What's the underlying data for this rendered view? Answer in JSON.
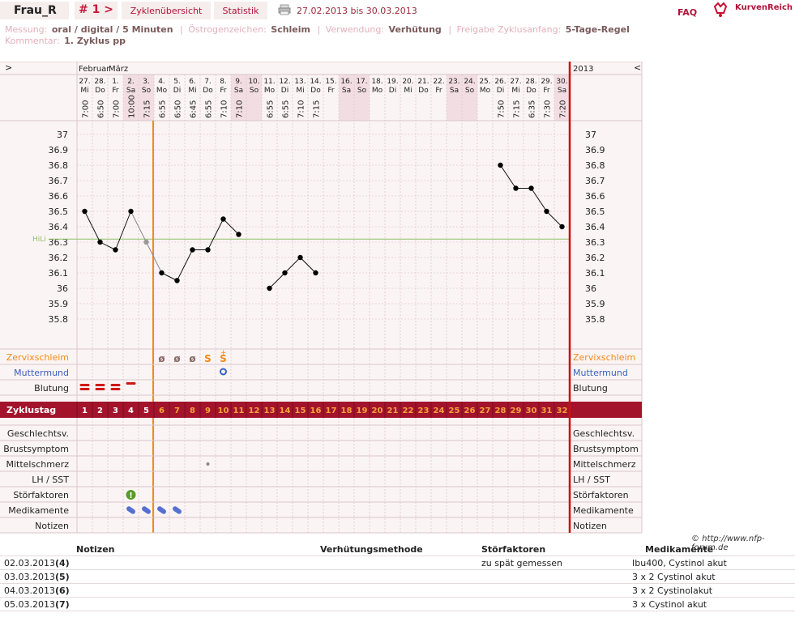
{
  "header": {
    "user": "Frau_R",
    "cycle_nav": "# 1 >",
    "tab_overview": "Zyklenübersicht",
    "tab_stats": "Statistik",
    "date_range": "27.02.2013 bis 30.03.2013",
    "faq": "FAQ",
    "logo": "KurvenReich",
    "print_icon": "printer-icon"
  },
  "info": {
    "measure_label": "Messung:",
    "measure_value": "oral / digital / 5 Minuten",
    "estrogen_label": "Östrogenzeichen:",
    "estrogen_value": "Schleim",
    "use_label": "Verwendung:",
    "use_value": "Verhütung",
    "release_label": "Freigabe Zyklusanfang:",
    "release_value": "5-Tage-Regel",
    "comment_label": "Kommentar:",
    "comment_value": "1. Zyklus pp"
  },
  "chart": {
    "nav_left": ">",
    "nav_right": "<",
    "year": "2013",
    "months": [
      "Februar",
      "März"
    ],
    "hili_label": "HiLi",
    "hili": 36.32,
    "ylim": [
      35.75,
      37.05
    ],
    "yticks": [
      "37",
      "36.9",
      "36.8",
      "36.7",
      "36.6",
      "36.5",
      "36.4",
      "36.3",
      "36.2",
      "36.1",
      "36",
      "35.9",
      "35.8"
    ],
    "cover_line_day": 5,
    "days": [
      {
        "d": "27.",
        "w": "Mi",
        "t": "7:00",
        "we": false
      },
      {
        "d": "28.",
        "w": "Do",
        "t": "6:50",
        "we": false
      },
      {
        "d": "1.",
        "w": "Fr",
        "t": "7:00",
        "we": false
      },
      {
        "d": "2.",
        "w": "Sa",
        "t": "10:00",
        "we": true
      },
      {
        "d": "3.",
        "w": "So",
        "t": "7:15",
        "we": true
      },
      {
        "d": "4.",
        "w": "Mo",
        "t": "6:55",
        "we": false
      },
      {
        "d": "5.",
        "w": "Di",
        "t": "6:50",
        "we": false
      },
      {
        "d": "6.",
        "w": "Mi",
        "t": "6:45",
        "we": false
      },
      {
        "d": "7.",
        "w": "Do",
        "t": "6:55",
        "we": false
      },
      {
        "d": "8.",
        "w": "Fr",
        "t": "7:10",
        "we": false
      },
      {
        "d": "9.",
        "w": "Sa",
        "t": "7:10",
        "we": true
      },
      {
        "d": "10.",
        "w": "So",
        "t": "",
        "we": true
      },
      {
        "d": "11.",
        "w": "Mo",
        "t": "6:55",
        "we": false
      },
      {
        "d": "12.",
        "w": "Di",
        "t": "6:55",
        "we": false
      },
      {
        "d": "13.",
        "w": "Mi",
        "t": "7:10",
        "we": false
      },
      {
        "d": "14.",
        "w": "Do",
        "t": "7:15",
        "we": false
      },
      {
        "d": "15.",
        "w": "Fr",
        "t": "",
        "we": false
      },
      {
        "d": "16.",
        "w": "Sa",
        "t": "",
        "we": true
      },
      {
        "d": "17.",
        "w": "So",
        "t": "",
        "we": true
      },
      {
        "d": "18.",
        "w": "Mo",
        "t": "",
        "we": false
      },
      {
        "d": "19.",
        "w": "Di",
        "t": "",
        "we": false
      },
      {
        "d": "20.",
        "w": "Mi",
        "t": "",
        "we": false
      },
      {
        "d": "21.",
        "w": "Do",
        "t": "",
        "we": false
      },
      {
        "d": "22.",
        "w": "Fr",
        "t": "",
        "we": false
      },
      {
        "d": "23.",
        "w": "Sa",
        "t": "",
        "we": true
      },
      {
        "d": "24.",
        "w": "So",
        "t": "",
        "we": true
      },
      {
        "d": "25.",
        "w": "Mo",
        "t": "",
        "we": false
      },
      {
        "d": "26.",
        "w": "Di",
        "t": "7:50",
        "we": false
      },
      {
        "d": "27.",
        "w": "Mi",
        "t": "7:15",
        "we": false
      },
      {
        "d": "28.",
        "w": "Do",
        "t": "6:35",
        "we": false
      },
      {
        "d": "29.",
        "w": "Fr",
        "t": "7:30",
        "we": false
      },
      {
        "d": "30.",
        "w": "Sa",
        "t": "7:20",
        "we": true
      }
    ],
    "temps": [
      36.5,
      36.3,
      36.25,
      36.5,
      36.3,
      36.1,
      36.05,
      36.25,
      36.25,
      36.45,
      36.35,
      null,
      36.0,
      36.1,
      36.2,
      36.1,
      null,
      null,
      null,
      null,
      null,
      null,
      null,
      null,
      null,
      null,
      null,
      36.8,
      36.65,
      36.65,
      36.5,
      36.4
    ],
    "excluded": [
      4
    ],
    "mucus_label": "Zervixschleim",
    "mucus": {
      "6": "ø",
      "7": "ø",
      "8": "ø",
      "9": "S",
      "10": "S"
    },
    "mucus_plus_day": 10,
    "cervix_label": "Muttermund",
    "cervix_day": 10,
    "bleeding_label": "Blutung",
    "bleeding": {
      "1": "heavy",
      "2": "heavy",
      "3": "heavy",
      "4": "light"
    },
    "cycle_label": "Zyklustag",
    "cycle_days": [
      "1",
      "2",
      "3",
      "4",
      "5",
      "6",
      "7",
      "8",
      "9",
      "10",
      "11",
      "12",
      "13",
      "14",
      "15",
      "16",
      "17",
      "18",
      "19",
      "20",
      "21",
      "22",
      "23",
      "24",
      "25",
      "26",
      "27",
      "28",
      "29",
      "30",
      "31",
      "32"
    ],
    "rows": [
      {
        "label": "Geschlechtsv.",
        "name": "intercourse"
      },
      {
        "label": "Brustsymptom",
        "name": "breast"
      },
      {
        "label": "Mittelschmerz",
        "name": "midpain"
      },
      {
        "label": "LH / SST",
        "name": "lh"
      },
      {
        "label": "Störfaktoren",
        "name": "disturb"
      },
      {
        "label": "Medikamente",
        "name": "meds"
      },
      {
        "label": "Notizen",
        "name": "notes"
      }
    ],
    "midpain_day": 9,
    "disturb_day": 4,
    "meds_days": [
      4,
      5,
      6,
      7
    ]
  },
  "copyright": "© http://www.nfp-forum.de",
  "notes_table": {
    "headers": {
      "notes": "Notizen",
      "method": "Verhütungsmethode",
      "disturb": "Störfaktoren",
      "meds": "Medikamente"
    },
    "rows": [
      {
        "date": "02.03.2013",
        "cd": "(4)",
        "disturb": "zu spät gemessen",
        "meds": "Ibu400, Cystinol akut"
      },
      {
        "date": "03.03.2013",
        "cd": "(5)",
        "disturb": "",
        "meds": "3 x 2 Cystinol akut"
      },
      {
        "date": "04.03.2013",
        "cd": "(6)",
        "disturb": "",
        "meds": "3 x 2 Cystinolakut"
      },
      {
        "date": "05.03.2013",
        "cd": "(7)",
        "disturb": "",
        "meds": "3 x Cystinol akut"
      }
    ]
  },
  "colors": {
    "accent": "#b0143a",
    "band": "#a3132c",
    "orange": "#f28a1c",
    "red_line": "#cc1010",
    "hili": "#8dbf66"
  }
}
